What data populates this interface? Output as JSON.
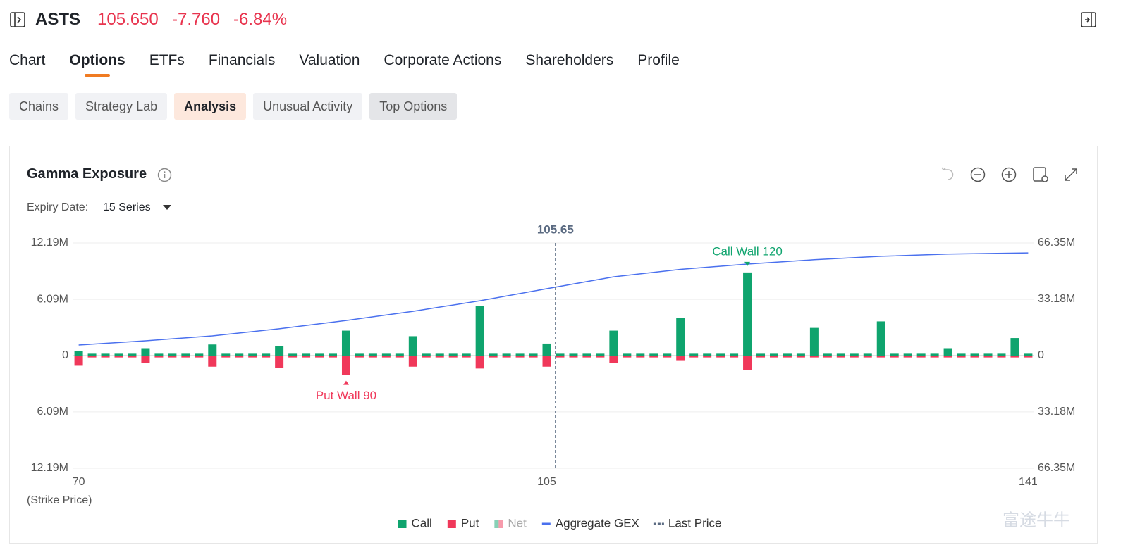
{
  "header": {
    "symbol": "ASTS",
    "price": "105.650",
    "change": "-7.760",
    "change_pct": "-6.84%"
  },
  "tabs": {
    "items": [
      "Chart",
      "Options",
      "ETFs",
      "Financials",
      "Valuation",
      "Corporate Actions",
      "Shareholders",
      "Profile"
    ],
    "active": 1
  },
  "subtabs": {
    "items": [
      "Chains",
      "Strategy Lab",
      "Analysis",
      "Unusual Activity",
      "Top Options"
    ],
    "active": 2
  },
  "panel": {
    "title": "Gamma Exposure",
    "expiry_label": "Expiry Date:",
    "expiry_value": "15 Series"
  },
  "watermark": "富途牛牛",
  "chart_data": {
    "type": "bar",
    "x_label": "(Strike Price)",
    "x": [
      70,
      71,
      72,
      73,
      74,
      75,
      76,
      77,
      78,
      79,
      80,
      81,
      82,
      83,
      84,
      85,
      86,
      87,
      88,
      89,
      90,
      91,
      92,
      93,
      94,
      95,
      96,
      97,
      98,
      99,
      100,
      101,
      102,
      103,
      104,
      105,
      106,
      107,
      108,
      109,
      110,
      111,
      112,
      113,
      114,
      115,
      116,
      117,
      118,
      119,
      120,
      121,
      122,
      123,
      124,
      125,
      126,
      127,
      128,
      129,
      130,
      131,
      132,
      133,
      134,
      135,
      136,
      137,
      138,
      139,
      140,
      141
    ],
    "xlim": [
      69.6,
      141.4
    ],
    "xticks": [
      70,
      105,
      141
    ],
    "ylim": [
      -12.19,
      12.19
    ],
    "yticks": [
      {
        "value": -12.19,
        "label": "12.19M"
      },
      {
        "value": -6.09,
        "label": "6.09M"
      },
      0,
      {
        "value": 6.09,
        "label": "6.09M"
      },
      {
        "value": 12.19,
        "label": "12.19M"
      }
    ],
    "y2lim": [
      -66.35,
      66.35
    ],
    "y2ticks": [
      {
        "value": -66.35,
        "label": "66.35M"
      },
      {
        "value": -33.18,
        "label": "33.18M"
      },
      0,
      {
        "value": 33.18,
        "label": "33.18M"
      },
      {
        "value": 66.35,
        "label": "66.35M"
      }
    ],
    "grid": true,
    "series": [
      {
        "name": "Call",
        "color": "#0fa46e",
        "values": [
          0.5,
          0.2,
          0.2,
          0.2,
          0.2,
          0.8,
          0.2,
          0.2,
          0.2,
          0.2,
          1.2,
          0.2,
          0.2,
          0.2,
          0.2,
          1.0,
          0.2,
          0.2,
          0.2,
          0.2,
          2.7,
          0.2,
          0.2,
          0.2,
          0.2,
          2.1,
          0.2,
          0.2,
          0.2,
          0.2,
          5.4,
          0.2,
          0.2,
          0.2,
          0.2,
          1.3,
          0.2,
          0.2,
          0.2,
          0.2,
          2.7,
          0.2,
          0.2,
          0.2,
          0.2,
          4.1,
          0.2,
          0.2,
          0.2,
          0.2,
          9.0,
          0.2,
          0.2,
          0.2,
          0.2,
          3.0,
          0.2,
          0.2,
          0.2,
          0.2,
          3.7,
          0.2,
          0.2,
          0.2,
          0.2,
          0.8,
          0.2,
          0.2,
          0.2,
          0.2,
          1.9,
          0.2
        ]
      },
      {
        "name": "Put",
        "color": "#f0385a",
        "values": [
          -1.1,
          -0.2,
          -0.2,
          -0.2,
          -0.2,
          -0.8,
          -0.2,
          -0.2,
          -0.2,
          -0.2,
          -1.2,
          -0.2,
          -0.2,
          -0.2,
          -0.2,
          -1.3,
          -0.2,
          -0.2,
          -0.2,
          -0.2,
          -2.1,
          -0.2,
          -0.2,
          -0.2,
          -0.2,
          -1.2,
          -0.2,
          -0.2,
          -0.2,
          -0.2,
          -1.4,
          -0.2,
          -0.2,
          -0.2,
          -0.2,
          -1.2,
          -0.2,
          -0.2,
          -0.2,
          -0.2,
          -0.8,
          -0.2,
          -0.2,
          -0.2,
          -0.2,
          -0.5,
          -0.2,
          -0.2,
          -0.2,
          -0.2,
          -1.6,
          -0.2,
          -0.2,
          -0.2,
          -0.2,
          -0.2,
          -0.2,
          -0.2,
          -0.2,
          -0.2,
          -0.2,
          -0.2,
          -0.2,
          -0.2,
          -0.2,
          -0.2,
          -0.2,
          -0.2,
          -0.2,
          -0.2,
          -0.2,
          -0.2
        ]
      },
      {
        "name": "Aggregate GEX",
        "color": "#4a70ee",
        "type": "line",
        "axis": "y2",
        "x": [
          70,
          75,
          80,
          85,
          90,
          95,
          100,
          105,
          110,
          115,
          120,
          125,
          130,
          135,
          141
        ],
        "values": [
          6.2,
          8.7,
          11.6,
          15.8,
          20.7,
          26.1,
          32.3,
          39.4,
          46.4,
          50.8,
          53.9,
          56.5,
          58.5,
          59.8,
          60.5
        ]
      }
    ],
    "net": {
      "name": "Net",
      "disabled": true
    },
    "last_price": {
      "name": "Last Price",
      "value": 105.65,
      "color": "#5b6b82"
    },
    "annotations": [
      {
        "text": "Call Wall 120",
        "strike": 120,
        "series": 0
      },
      {
        "text": "Put Wall 90",
        "strike": 90,
        "series": 1
      }
    ],
    "legend": "bottom"
  }
}
